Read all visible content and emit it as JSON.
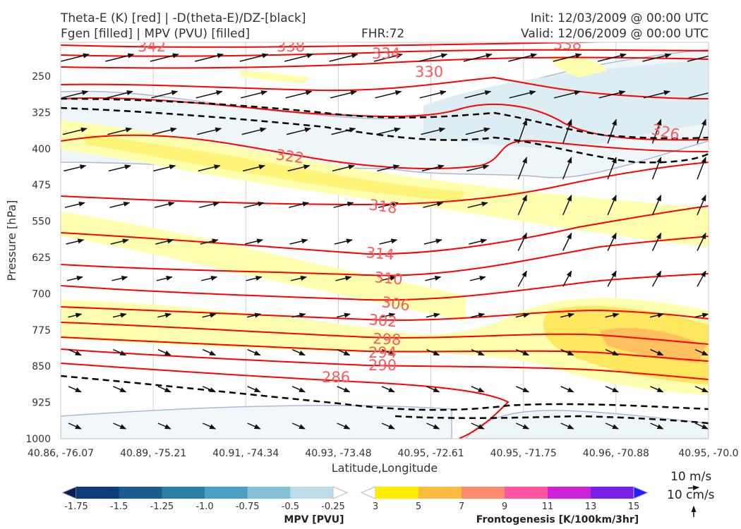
{
  "header": {
    "title_line1": "Theta-E (K) [red] | -D(theta-E)/DZ-[black]",
    "title_line2": "Fgen [filled] | MPV (PVU) [filled]",
    "fhr": "FHR:72",
    "init": "Init: 12/03/2009 @ 00:00 UTC",
    "valid": "Valid: 12/06/2009 @ 00:00 UTC"
  },
  "chart_data": {
    "type": "cross-section",
    "xlabel": "Latitude,Longitude",
    "ylabel": "Pressure [hPa]",
    "x_ticks": [
      "40.86, -76.07",
      "40.89, -75.21",
      "40.91, -74.34",
      "40.93, -73.48",
      "40.95, -72.61",
      "40.95, -71.75",
      "40.96, -70.88",
      "40.95, -70.0"
    ],
    "y_ticks": [
      250,
      325,
      400,
      475,
      550,
      625,
      700,
      775,
      850,
      925,
      1000
    ],
    "ylim": [
      1000,
      180
    ],
    "grid": true,
    "theta_e_contours": {
      "color": "#ff0000",
      "labels": [
        "342",
        "338",
        "334",
        "330",
        "326",
        "322",
        "318",
        "314",
        "310",
        "306",
        "302",
        "298",
        "294",
        "290",
        "286"
      ]
    },
    "vector_key": {
      "horizontal": "10 m/s",
      "vertical": "10 cm/s"
    }
  },
  "colorbars": {
    "mpv": {
      "label": "MPV [PVU]",
      "ticks": [
        "-1.75",
        "-1.5",
        "-1.25",
        "-1.0",
        "-0.75",
        "-0.5",
        "-0.25"
      ],
      "colors": [
        "#081d58",
        "#0d3c7a",
        "#1a5c8e",
        "#2a7fa5",
        "#4aa0c4",
        "#86c0d8",
        "#bcdde8",
        "#ffffff"
      ]
    },
    "fgen": {
      "label": "Frontogenesis [K/100km/3hr]",
      "ticks": [
        "3",
        "5",
        "7",
        "9",
        "11",
        "13",
        "15"
      ],
      "colors": [
        "#ffffff",
        "#ffee00",
        "#ffbb40",
        "#ff8a70",
        "#ff55a0",
        "#cc22d8",
        "#7a1fe8",
        "#2222ff"
      ]
    }
  }
}
